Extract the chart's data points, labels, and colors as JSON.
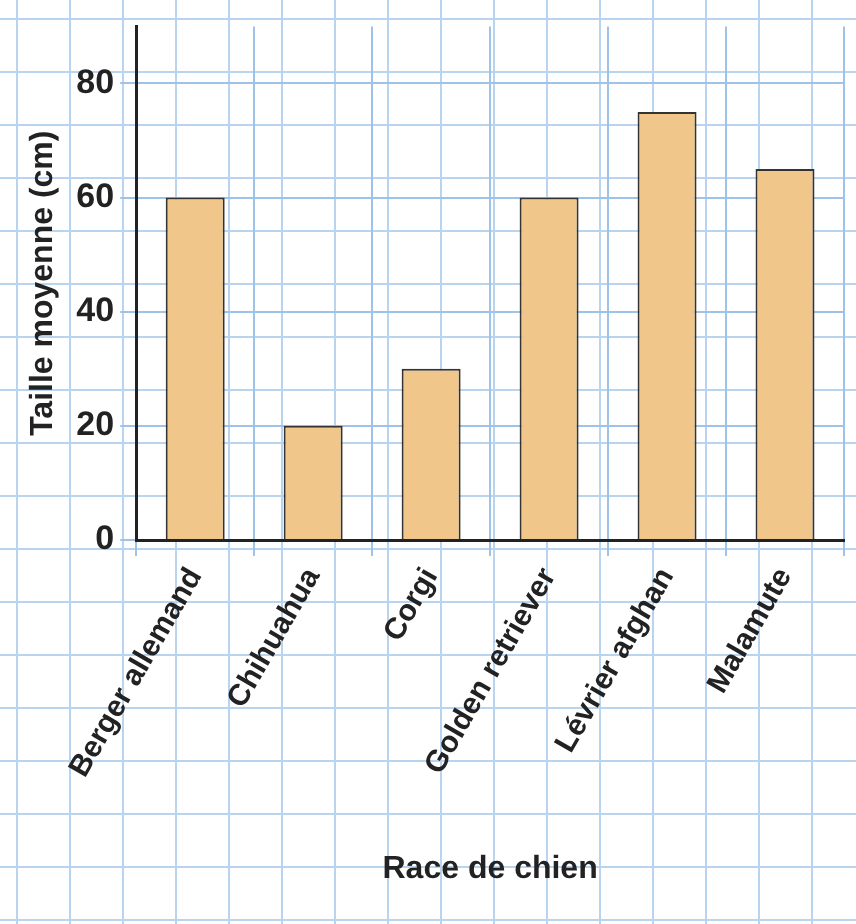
{
  "chart_data": {
    "type": "bar",
    "xlabel": "Race de chien",
    "ylabel": "Taille moyenne (cm)",
    "categories": [
      "Berger allemand",
      "Chihuahua",
      "Corgi",
      "Golden retriever",
      "Lévrier afghan",
      "Malamute"
    ],
    "values": [
      60,
      20,
      30,
      60,
      75,
      65
    ],
    "color": "#f0c68a",
    "ylim": [
      0,
      90
    ],
    "yticks": [
      0,
      20,
      40,
      60,
      80
    ],
    "grid": true
  }
}
